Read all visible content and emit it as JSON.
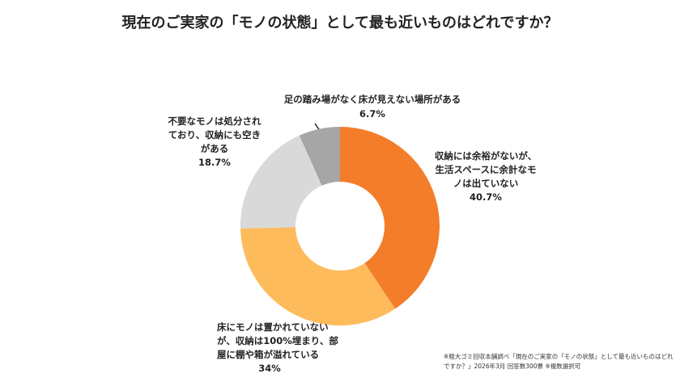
{
  "chart_data": {
    "type": "donut",
    "title": "現在のご実家の「モノの状態」として最も近いものはどれですか？",
    "categories": [
      "収納には余裕がないが、\n生活スペースに余計なモ\nノは出ていない",
      "床にモノは置かれていない\nが、収納は100%埋まり、部\n屋に棚や箱が溢れている",
      "不要なモノは処分され\nており、収納にも空き\nがある",
      "足の踏み場がなく床が見えない場所がある"
    ],
    "values": [
      40.7,
      34,
      18.7,
      6.7
    ],
    "value_labels": [
      "40.7%",
      "34%",
      "18.7%",
      "6.7%"
    ],
    "colors": [
      "#f47d2a",
      "#fdbb5c",
      "#d9d9d9",
      "#a6a6a6"
    ],
    "note": "※粗大ゴミ回収本舗調べ「現在のご実家の「モノの状態」として最も近いものはどれ\nですか？」2026年3月 回答数300票 ※複数選択可"
  }
}
